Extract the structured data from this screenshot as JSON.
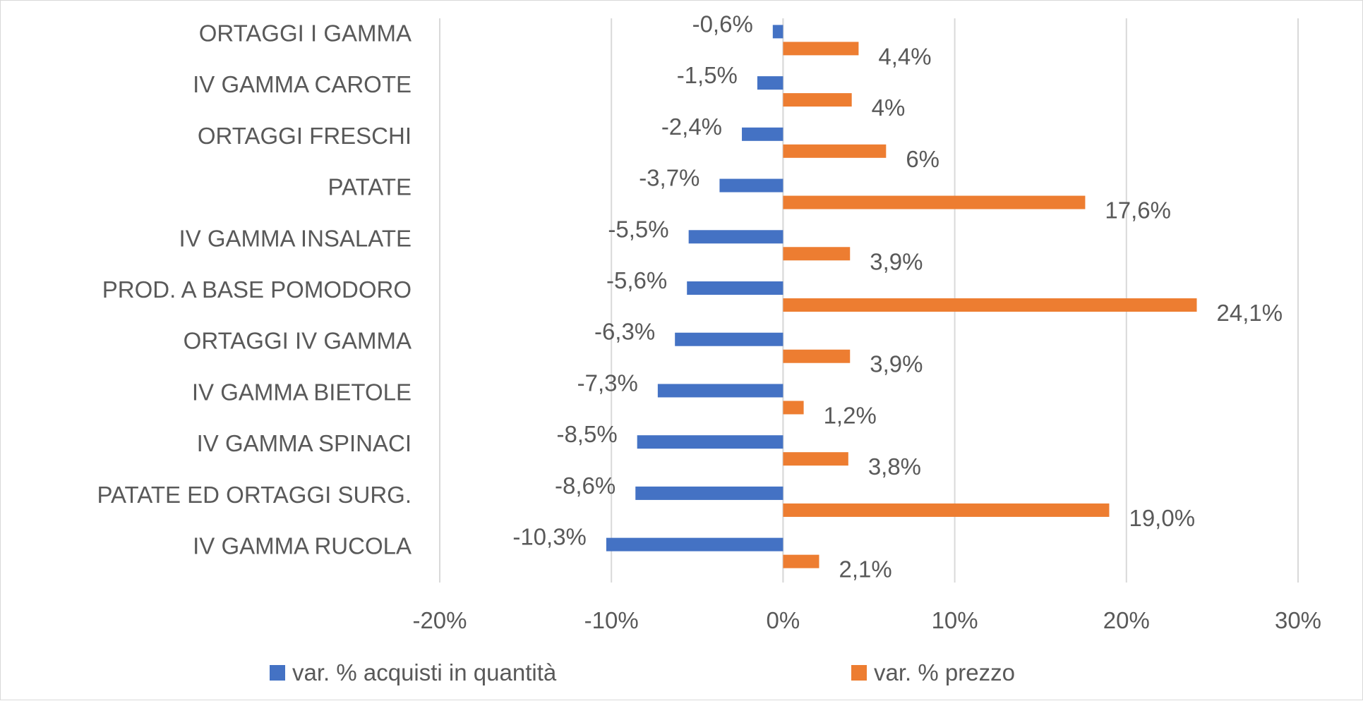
{
  "chart_data": {
    "type": "bar",
    "orientation": "horizontal",
    "categories": [
      "ORTAGGI I GAMMA",
      "IV GAMMA CAROTE",
      "ORTAGGI FRESCHI",
      "PATATE",
      "IV GAMMA INSALATE",
      "PROD. A BASE POMODORO",
      "ORTAGGI IV GAMMA",
      "IV GAMMA BIETOLE",
      "IV GAMMA SPINACI",
      "PATATE ED ORTAGGI SURG.",
      "IV GAMMA RUCOLA"
    ],
    "series": [
      {
        "name": "var. % acquisti in quantità",
        "color": "#4472C4",
        "values": [
          -0.6,
          -1.5,
          -2.4,
          -3.7,
          -5.5,
          -5.6,
          -6.3,
          -7.3,
          -8.5,
          -8.6,
          -10.3
        ],
        "labels": [
          "-0,6%",
          "-1,5%",
          "-2,4%",
          "-3,7%",
          "-5,5%",
          "-5,6%",
          "-6,3%",
          "-7,3%",
          "-8,5%",
          "-8,6%",
          "-10,3%"
        ]
      },
      {
        "name": "var. % prezzo",
        "color": "#ED7D31",
        "values": [
          4.4,
          4.0,
          6.0,
          17.6,
          3.9,
          24.1,
          3.9,
          1.2,
          3.8,
          19.0,
          2.1
        ],
        "labels": [
          "4,4%",
          "4%",
          "6%",
          "17,6%",
          "3,9%",
          "24,1%",
          "3,9%",
          "1,2%",
          "3,8%",
          "19,0%",
          "2,1%"
        ]
      }
    ],
    "xlim": [
      -20,
      30
    ],
    "xticks": [
      -20,
      -10,
      0,
      10,
      20,
      30
    ],
    "xtick_labels": [
      "-20%",
      "-10%",
      "0%",
      "10%",
      "20%",
      "30%"
    ],
    "grid": "vertical",
    "legend": "bottom",
    "title": "",
    "xlabel": "",
    "ylabel": ""
  }
}
